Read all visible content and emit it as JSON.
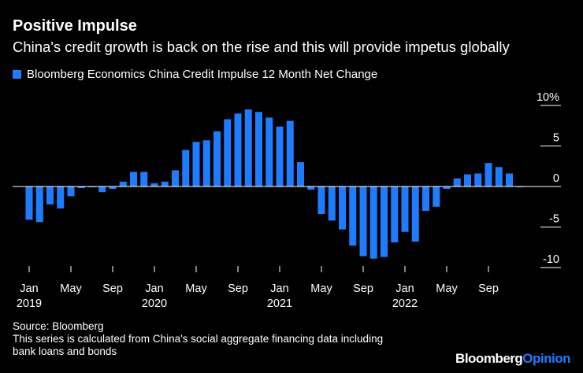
{
  "header": {
    "title": "Positive Impulse",
    "subtitle": "China's credit growth is back on the rise and this will provide impetus globally"
  },
  "footer": {
    "source": "Source: Bloomberg",
    "note_line1": "This series is calculated from China's social aggregate financing data including",
    "note_line2": "bank loans and bonds"
  },
  "brand": {
    "part1": "Bloomberg",
    "part2": "Opinion"
  },
  "colors": {
    "bar": "#1f7cff",
    "background": "#000000",
    "text": "#ffffff",
    "axis": "#ffffff"
  },
  "chart_data": {
    "type": "bar",
    "title": "Positive Impulse",
    "legend": [
      "Bloomberg Economics China Credit Impulse 12 Month Net Change"
    ],
    "series": [
      {
        "name": "Bloomberg Economics China Credit Impulse 12 Month Net Change",
        "values": [
          -4.1,
          -4.4,
          -2.2,
          -2.7,
          -1.2,
          -0.2,
          -0.1,
          -0.7,
          -0.3,
          0.6,
          1.8,
          1.8,
          0.4,
          0.6,
          2.0,
          4.5,
          5.5,
          5.7,
          6.8,
          8.3,
          9.0,
          9.5,
          9.2,
          8.5,
          7.4,
          8.1,
          3.0,
          -0.4,
          -3.4,
          -4.2,
          -5.3,
          -7.3,
          -8.6,
          -8.9,
          -8.7,
          -6.9,
          -5.6,
          -6.8,
          -3.0,
          -2.5,
          -0.3,
          1.0,
          1.5,
          1.6,
          2.9,
          2.4,
          1.6,
          -0.1
        ],
        "start": "2019-01",
        "frequency": "monthly"
      }
    ],
    "x_ticks": [
      {
        "month_index": 0,
        "label": "Jan",
        "year": "2019"
      },
      {
        "month_index": 4,
        "label": "May"
      },
      {
        "month_index": 8,
        "label": "Sep"
      },
      {
        "month_index": 12,
        "label": "Jan",
        "year": "2020"
      },
      {
        "month_index": 16,
        "label": "May"
      },
      {
        "month_index": 20,
        "label": "Sep"
      },
      {
        "month_index": 24,
        "label": "Jan",
        "year": "2021"
      },
      {
        "month_index": 28,
        "label": "May"
      },
      {
        "month_index": 32,
        "label": "Sep"
      },
      {
        "month_index": 36,
        "label": "Jan",
        "year": "2022"
      },
      {
        "month_index": 40,
        "label": "May"
      },
      {
        "month_index": 44,
        "label": "Sep"
      }
    ],
    "y_ticks": [
      {
        "value": 10,
        "label": "10%"
      },
      {
        "value": 5,
        "label": "5"
      },
      {
        "value": 0,
        "label": "0"
      },
      {
        "value": -5,
        "label": "-5"
      },
      {
        "value": -10,
        "label": "-10"
      }
    ],
    "ylim": [
      -10,
      10
    ],
    "xlabel": "",
    "ylabel": "",
    "grid": false,
    "legend_position": "top-left"
  }
}
